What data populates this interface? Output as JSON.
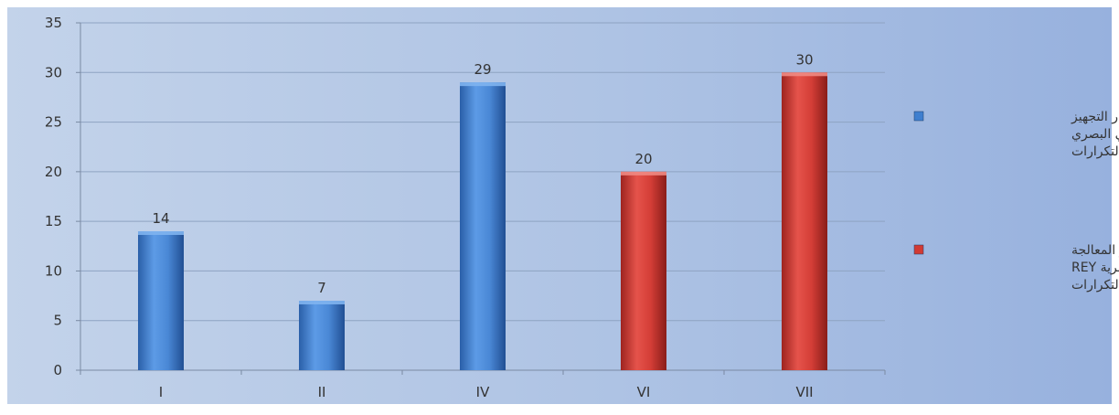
{
  "chart_data": {
    "type": "bar",
    "categories": [
      "I",
      "II",
      "IV",
      "VI",
      "VII"
    ],
    "series": [
      {
        "name": "اختبار التجهيز الإدراكي البصري REYالتكرارات",
        "legend_lines": [
          "اختبار التجهيز",
          "الإدراكي البصري",
          "REYالتكرارات"
        ],
        "color": "#3f7fcf",
        "values": [
          14,
          7,
          29,
          null,
          null
        ]
      },
      {
        "name": "اختبار المعالجة الذاكرية البصرية REY التكرارات",
        "legend_lines": [
          "اختبار المعالجة",
          "الذاكرية البصرية REY",
          "التكرارات"
        ],
        "color": "#d23a33",
        "values": [
          null,
          null,
          null,
          20,
          30
        ]
      }
    ],
    "ylim": [
      0,
      35
    ],
    "yticks": [
      0,
      5,
      10,
      15,
      20,
      25,
      30,
      35
    ],
    "grid": true,
    "legend_position": "right",
    "data_labels": true
  }
}
